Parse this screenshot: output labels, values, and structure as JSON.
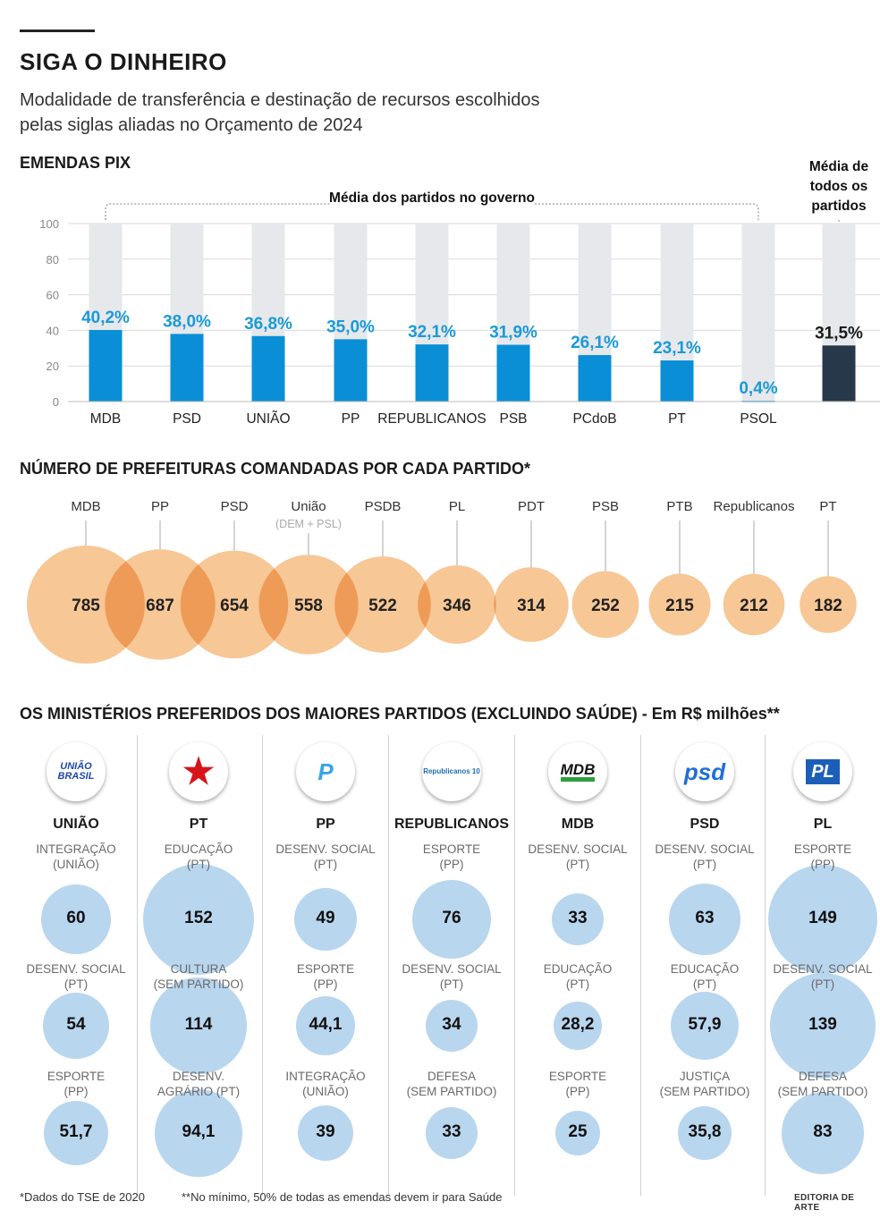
{
  "header": {
    "title": "SIGA O DINHEIRO",
    "subtitle_line1": "Modalidade de transferência e destinação de recursos escolhidos",
    "subtitle_line2": "pelas siglas aliadas no Orçamento de 2024"
  },
  "section1": {
    "title": "EMENDAS PIX",
    "bracket_label": "Média dos partidos no governo",
    "avg_note": [
      "Média de",
      "todos os",
      "partidos"
    ]
  },
  "section2": {
    "title": "NÚMERO DE PREFEITURAS COMANDADAS POR CADA PARTIDO*"
  },
  "section3": {
    "title": "OS MINISTÉRIOS PREFERIDOS DOS MAIORES PARTIDOS (EXCLUINDO SAÚDE) - Em R$ milhões**"
  },
  "footer": {
    "note1": "*Dados do TSE de 2020",
    "note2": "**No mínimo, 50% de todas as emendas devem ir para Saúde",
    "credit": "EDITORIA DE ARTE"
  },
  "colors": {
    "blue": "#0a8fd6",
    "dark": "#27384a",
    "track": "#e6e8eb",
    "orange": "#f7c796",
    "orange_overlap": "#f3a462",
    "light_blue": "#b9d6ef",
    "label_blue": "#1a9ad8"
  },
  "chart_data": [
    {
      "type": "bar",
      "title": "EMENDAS PIX",
      "categories": [
        "MDB",
        "PSD",
        "UNIÃO",
        "PP",
        "REPUBLICANOS",
        "PSB",
        "PCdoB",
        "PT",
        "PSOL",
        ""
      ],
      "values": [
        40.2,
        38.0,
        36.8,
        35.0,
        32.1,
        31.9,
        26.1,
        23.1,
        0.4,
        31.5
      ],
      "labels": [
        "40,2%",
        "38,0%",
        "36,8%",
        "35,0%",
        "32,1%",
        "31,9%",
        "26,1%",
        "23,1%",
        "0,4%",
        "31,5%"
      ],
      "ylim": [
        0,
        100
      ],
      "yticks": [
        "0",
        "20",
        "40",
        "60",
        "80",
        "100"
      ],
      "grid": true
    },
    {
      "type": "bubble",
      "title": "NÚMERO DE PREFEITURAS COMANDADAS POR CADA PARTIDO*",
      "categories": [
        "MDB",
        "PP",
        "PSD",
        "União",
        "PSDB",
        "PL",
        "PDT",
        "PSB",
        "PTB",
        "Republicanos",
        "PT"
      ],
      "sublabels": [
        "",
        "",
        "",
        "(DEM + PSL)",
        "",
        "",
        "",
        "",
        "",
        "",
        ""
      ],
      "values": [
        785,
        687,
        654,
        558,
        522,
        346,
        314,
        252,
        215,
        212,
        182
      ]
    },
    {
      "type": "bubble",
      "title": "OS MINISTÉRIOS PREFERIDOS DOS MAIORES PARTIDOS (EXCLUINDO SAÚDE) - Em R$ milhões**",
      "parties": [
        {
          "name": "UNIÃO",
          "logo": "UNIÃO BRASIL",
          "items": [
            {
              "ministry": "INTEGRAÇÃO",
              "owner": "(UNIÃO)",
              "value": 60,
              "label": "60"
            },
            {
              "ministry": "DESENV. SOCIAL",
              "owner": "(PT)",
              "value": 54,
              "label": "54"
            },
            {
              "ministry": "ESPORTE",
              "owner": "(PP)",
              "value": 51.7,
              "label": "51,7"
            }
          ]
        },
        {
          "name": "PT",
          "logo": "PT",
          "items": [
            {
              "ministry": "EDUCAÇÃO",
              "owner": "(PT)",
              "value": 152,
              "label": "152"
            },
            {
              "ministry": "CULTURA",
              "owner": "(SEM PARTIDO)",
              "value": 114,
              "label": "114"
            },
            {
              "ministry": "DESENV.",
              "owner": "AGRÁRIO (PT)",
              "value": 94.1,
              "label": "94,1"
            }
          ]
        },
        {
          "name": "PP",
          "logo": "P",
          "items": [
            {
              "ministry": "DESENV. SOCIAL",
              "owner": "(PT)",
              "value": 49,
              "label": "49"
            },
            {
              "ministry": "ESPORTE",
              "owner": "(PP)",
              "value": 44.1,
              "label": "44,1"
            },
            {
              "ministry": "INTEGRAÇÃO",
              "owner": "(UNIÃO)",
              "value": 39,
              "label": "39"
            }
          ]
        },
        {
          "name": "REPUBLICANOS",
          "logo": "Republicanos 10",
          "items": [
            {
              "ministry": "ESPORTE",
              "owner": "(PP)",
              "value": 76,
              "label": "76"
            },
            {
              "ministry": "DESENV. SOCIAL",
              "owner": "(PT)",
              "value": 34,
              "label": "34"
            },
            {
              "ministry": "DEFESA",
              "owner": "(SEM PARTIDO)",
              "value": 33,
              "label": "33"
            }
          ]
        },
        {
          "name": "MDB",
          "logo": "MDB",
          "items": [
            {
              "ministry": "DESENV. SOCIAL",
              "owner": "(PT)",
              "value": 33,
              "label": "33"
            },
            {
              "ministry": "EDUCAÇÃO",
              "owner": "(PT)",
              "value": 28.2,
              "label": "28,2"
            },
            {
              "ministry": "ESPORTE",
              "owner": "(PP)",
              "value": 25,
              "label": "25"
            }
          ]
        },
        {
          "name": "PSD",
          "logo": "psd",
          "items": [
            {
              "ministry": "DESENV. SOCIAL",
              "owner": "(PT)",
              "value": 63,
              "label": "63"
            },
            {
              "ministry": "EDUCAÇÃO",
              "owner": "(PT)",
              "value": 57.9,
              "label": "57,9"
            },
            {
              "ministry": "JUSTIÇA",
              "owner": "(SEM PARTIDO)",
              "value": 35.8,
              "label": "35,8"
            }
          ]
        },
        {
          "name": "PL",
          "logo": "PL",
          "items": [
            {
              "ministry": "ESPORTE",
              "owner": "(PP)",
              "value": 149,
              "label": "149"
            },
            {
              "ministry": "DESENV. SOCIAL",
              "owner": "(PT)",
              "value": 139,
              "label": "139"
            },
            {
              "ministry": "DEFESA",
              "owner": "(SEM PARTIDO)",
              "value": 83,
              "label": "83"
            }
          ]
        }
      ]
    }
  ]
}
